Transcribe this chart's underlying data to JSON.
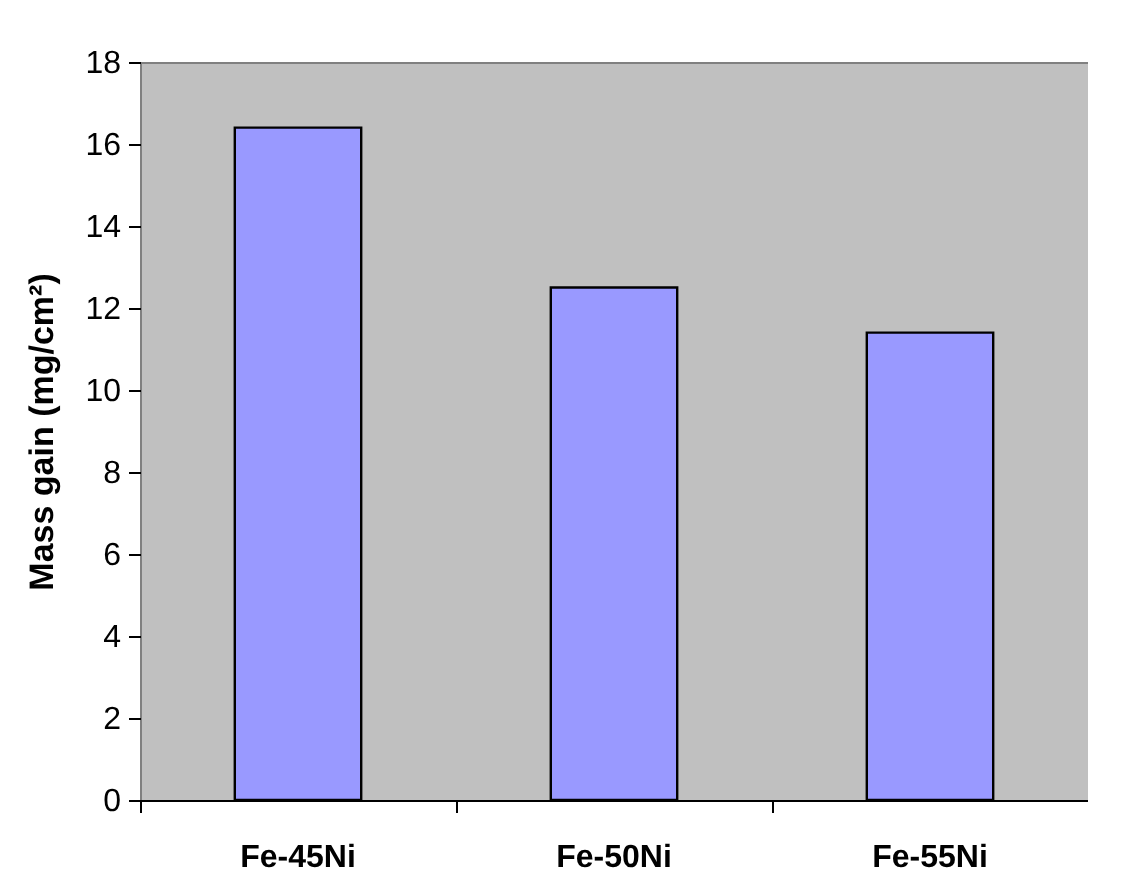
{
  "chart_data": {
    "type": "bar",
    "ylabel": "Mass gain (mg/cm²)",
    "categories": [
      "Fe-45Ni",
      "Fe-50Ni",
      "Fe-55Ni"
    ],
    "values": [
      16.4,
      12.5,
      11.4
    ],
    "color": "#9999ff",
    "ylim": [
      0,
      18
    ],
    "yticks": [
      0,
      2,
      4,
      6,
      8,
      10,
      12,
      14,
      16,
      18
    ],
    "grid": false
  }
}
